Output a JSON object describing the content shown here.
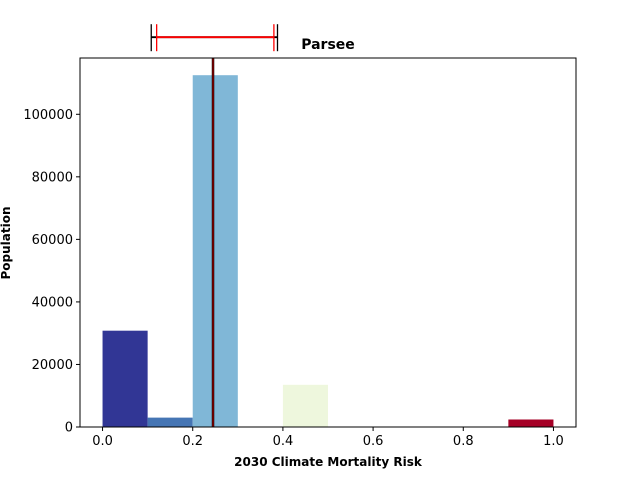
{
  "chart_data": {
    "type": "bar",
    "title": "Parsee",
    "xlabel": "2030 Climate Mortality Risk",
    "ylabel": "Population",
    "xlim": [
      -0.05,
      1.05
    ],
    "ylim": [
      0,
      118000
    ],
    "xticks": [
      0.0,
      0.2,
      0.4,
      0.6,
      0.8,
      1.0
    ],
    "xtick_labels": [
      "0.0",
      "0.2",
      "0.4",
      "0.6",
      "0.8",
      "1.0"
    ],
    "yticks": [
      0,
      20000,
      40000,
      60000,
      80000,
      100000
    ],
    "ytick_labels": [
      "0",
      "20000",
      "40000",
      "60000",
      "80000",
      "100000"
    ],
    "grid": false,
    "bins": [
      {
        "x0": 0.0,
        "x1": 0.1,
        "value": 30800,
        "color": "#313695"
      },
      {
        "x0": 0.1,
        "x1": 0.2,
        "value": 3000,
        "color": "#4575b4"
      },
      {
        "x0": 0.2,
        "x1": 0.3,
        "value": 112500,
        "color": "#80b7d7"
      },
      {
        "x0": 0.4,
        "x1": 0.5,
        "value": 13500,
        "color": "#eef7dd"
      },
      {
        "x0": 0.9,
        "x1": 1.0,
        "value": 2400,
        "color": "#a50026"
      }
    ],
    "mean_line": {
      "x": 0.245,
      "color": "#000000"
    },
    "median_line": {
      "x": 0.245,
      "color": "#cc0000"
    },
    "error_bars": [
      {
        "y": 112500,
        "low": 0.108,
        "high": 0.388,
        "color": "#000000"
      },
      {
        "y": 112500,
        "low": 0.12,
        "high": 0.38,
        "color": "#ff0000"
      }
    ]
  }
}
